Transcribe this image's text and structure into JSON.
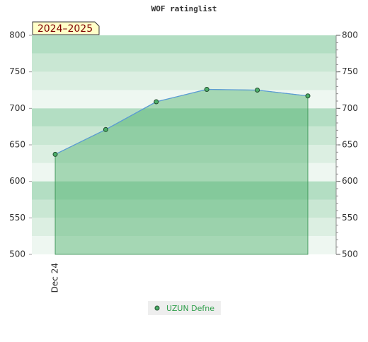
{
  "chart_data": {
    "type": "area",
    "title": "WOF ratinglist",
    "annotation": "2024–2025",
    "categories": [
      "Dec 24",
      null,
      null,
      null,
      null,
      null
    ],
    "series": [
      {
        "name": "UZUN Defne",
        "color": "#4caf6a",
        "values": [
          637,
          671,
          709,
          726,
          725,
          717
        ]
      }
    ],
    "ylim": [
      500,
      800
    ],
    "yticks": [
      500,
      550,
      600,
      650,
      700,
      750,
      800
    ],
    "y2lim": [
      500,
      800
    ],
    "y2ticks": [
      500,
      550,
      600,
      650,
      700,
      750,
      800
    ],
    "legend": "bottom"
  }
}
